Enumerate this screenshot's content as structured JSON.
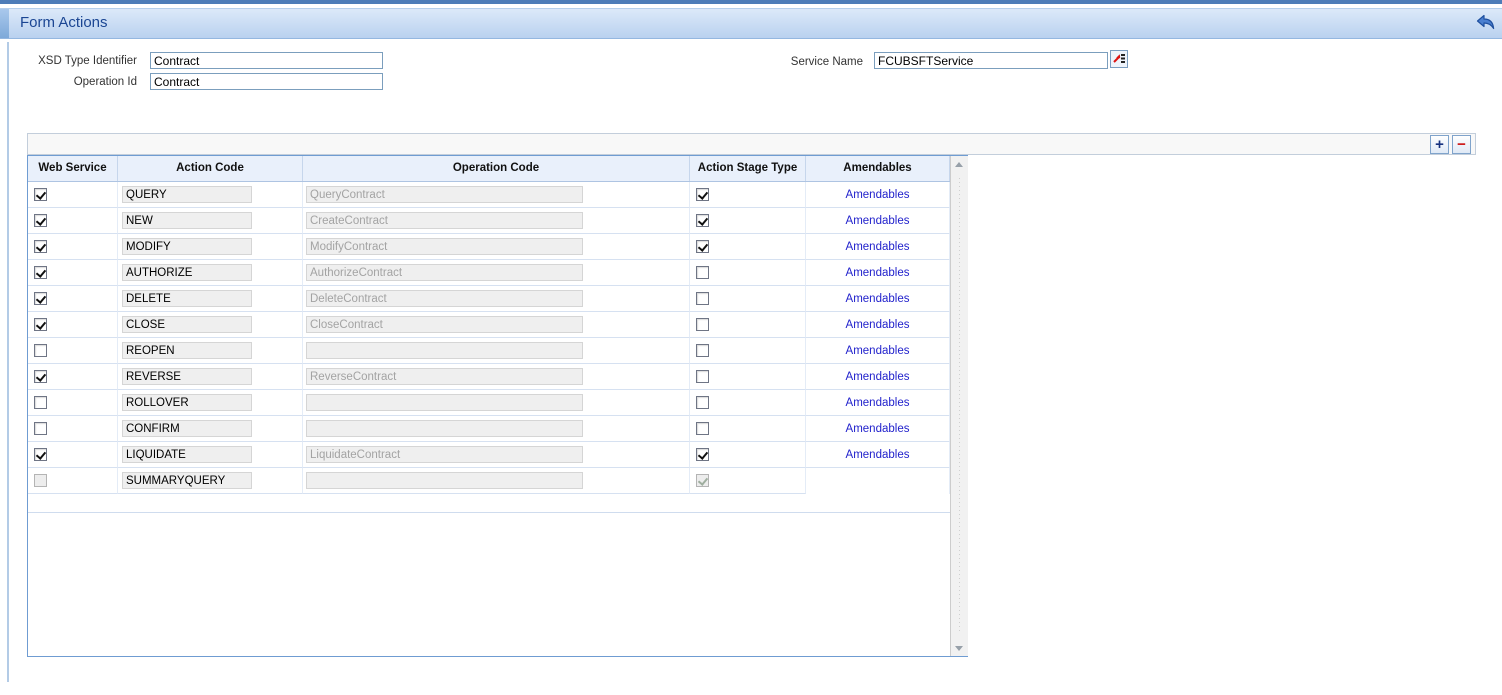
{
  "header": {
    "title": "Form Actions",
    "undo_icon": "undo-arrow-icon"
  },
  "form": {
    "xsd_type_identifier": {
      "label": "XSD Type Identifier",
      "value": "Contract"
    },
    "operation_id": {
      "label": "Operation Id",
      "value": "Contract"
    },
    "service_name": {
      "label": "Service Name",
      "value": "FCUBSFTService",
      "lov_icon": "lov-picker-icon"
    }
  },
  "grid_toolbar": {
    "add_label": "+",
    "remove_label": "−"
  },
  "table": {
    "columns": [
      "Web Service",
      "Action Code",
      "Operation Code",
      "Action Stage Type",
      "Amendables"
    ],
    "amendables_link_label": "Amendables",
    "rows": [
      {
        "web_service": "checked",
        "action_code": "QUERY",
        "operation_code": "QueryContract",
        "action_stage_type": "checked",
        "amendables_link": true
      },
      {
        "web_service": "checked",
        "action_code": "NEW",
        "operation_code": "CreateContract",
        "action_stage_type": "checked",
        "amendables_link": true
      },
      {
        "web_service": "checked",
        "action_code": "MODIFY",
        "operation_code": "ModifyContract",
        "action_stage_type": "checked",
        "amendables_link": true
      },
      {
        "web_service": "checked",
        "action_code": "AUTHORIZE",
        "operation_code": "AuthorizeContract",
        "action_stage_type": "unchecked",
        "amendables_link": true
      },
      {
        "web_service": "checked",
        "action_code": "DELETE",
        "operation_code": "DeleteContract",
        "action_stage_type": "unchecked",
        "amendables_link": true
      },
      {
        "web_service": "checked",
        "action_code": "CLOSE",
        "operation_code": "CloseContract",
        "action_stage_type": "unchecked",
        "amendables_link": true
      },
      {
        "web_service": "unchecked",
        "action_code": "REOPEN",
        "operation_code": "",
        "action_stage_type": "unchecked",
        "amendables_link": true
      },
      {
        "web_service": "checked",
        "action_code": "REVERSE",
        "operation_code": "ReverseContract",
        "action_stage_type": "unchecked",
        "amendables_link": true
      },
      {
        "web_service": "unchecked",
        "action_code": "ROLLOVER",
        "operation_code": "",
        "action_stage_type": "unchecked",
        "amendables_link": true
      },
      {
        "web_service": "unchecked",
        "action_code": "CONFIRM",
        "operation_code": "",
        "action_stage_type": "unchecked",
        "amendables_link": true
      },
      {
        "web_service": "checked",
        "action_code": "LIQUIDATE",
        "operation_code": "LiquidateContract",
        "action_stage_type": "checked",
        "amendables_link": true
      },
      {
        "web_service": "disabled",
        "action_code": "SUMMARYQUERY",
        "operation_code": "",
        "action_stage_type": "disabled-checked",
        "amendables_link": false
      }
    ]
  },
  "colors": {
    "title_blue": "#1b4693",
    "link_blue": "#2222cc",
    "plus_blue": "#17327f",
    "minus_red": "#cc1111",
    "header_row_bg": "#e9f0fb",
    "disabled_text": "#a3a3a3",
    "grid_border": "#6f9cd2"
  }
}
